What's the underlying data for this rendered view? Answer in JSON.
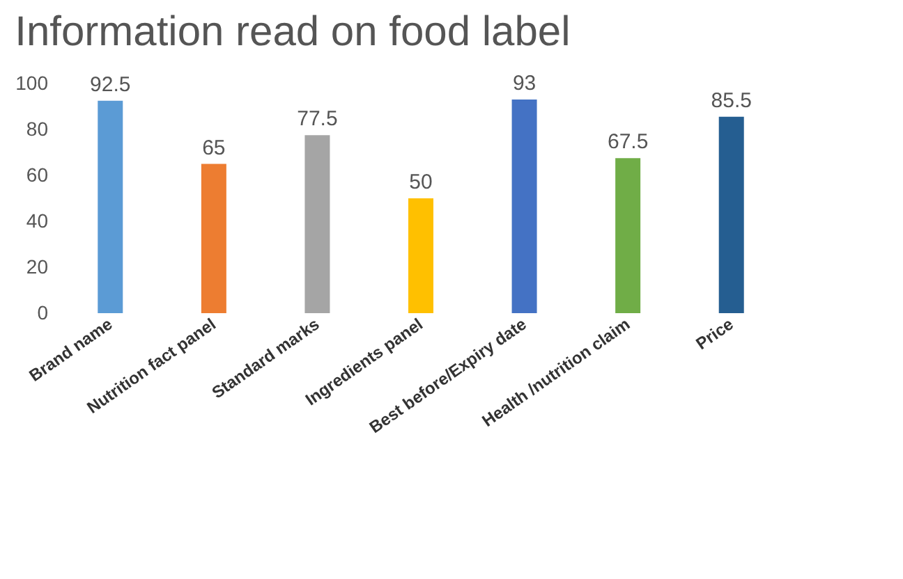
{
  "chart_data": {
    "type": "bar",
    "title": "Information read on food label",
    "categories": [
      "Brand name",
      "Nutrition fact panel",
      "Standard marks",
      "Ingredients panel",
      "Best before/Expiry date",
      "Health /nutrition claim",
      "Price"
    ],
    "values": [
      92.5,
      65,
      77.5,
      50,
      93,
      67.5,
      85.5
    ],
    "colors": [
      "#5b9bd5",
      "#ed7d31",
      "#a5a5a5",
      "#ffc000",
      "#4472c4",
      "#70ad47",
      "#255e91"
    ],
    "ylim": [
      0,
      100
    ],
    "yticks": [
      0,
      20,
      40,
      60,
      80,
      100
    ],
    "grid": false,
    "data_labels": true
  }
}
